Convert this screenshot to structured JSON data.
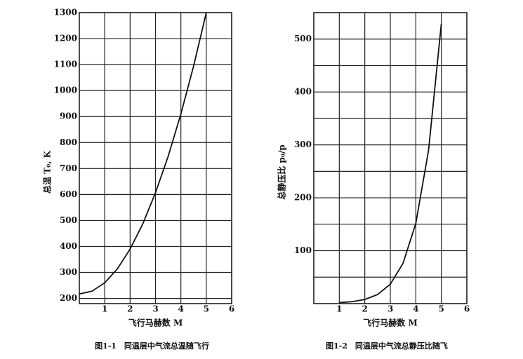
{
  "chart_data": [
    {
      "type": "line",
      "y_label": "总温 T₀, K",
      "x_label": "飞行马赫数 M",
      "caption": "图1-1　同温层中气流总温随飞行",
      "x": [
        0,
        0.5,
        1,
        1.5,
        2,
        2.5,
        3,
        3.5,
        4,
        4.5,
        5
      ],
      "series": [
        {
          "color": "#111111",
          "values": [
            217,
            228,
            260,
            314,
            390,
            487,
            607,
            747,
            910,
            1094,
            1300
          ]
        }
      ],
      "xlim": [
        0,
        6
      ],
      "xticks": [
        1,
        2,
        3,
        4,
        5,
        6
      ],
      "ylim": [
        180,
        1300
      ],
      "yticks": [
        200,
        300,
        400,
        500,
        600,
        700,
        800,
        900,
        1000,
        1100,
        1200,
        1300
      ],
      "grid": true,
      "minor_grid": false
    },
    {
      "type": "line",
      "y_label": "总静压比 p₀/p",
      "x_label": "飞行马赫数 M",
      "caption": "图1-2　同温层中气流总静压比随飞",
      "x": [
        1,
        1.5,
        2,
        2.5,
        3,
        3.5,
        4,
        4.5,
        5
      ],
      "series": [
        {
          "color": "#111111",
          "values": [
            1.89,
            3.67,
            7.82,
            17.1,
            36.7,
            76.3,
            151.8,
            290.1,
            529.1
          ]
        }
      ],
      "xlim": [
        0,
        6
      ],
      "xticks": [
        1,
        2,
        3,
        4,
        5,
        6
      ],
      "ylim": [
        0,
        550
      ],
      "yticks": [
        100,
        200,
        300,
        400,
        500
      ],
      "grid": true,
      "minor_grid": true
    }
  ]
}
